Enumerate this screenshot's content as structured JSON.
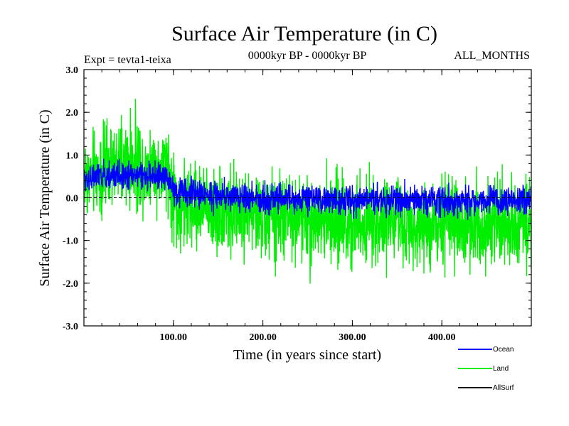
{
  "chart_data": {
    "type": "line",
    "title": "Surface Air Temperature (in C)",
    "experiment_label": "Expt = tevta1-teixa",
    "period_label": "0000kyr BP - 0000kyr BP",
    "months_label": "ALL_MONTHS",
    "xlabel": "Time (in years since start)",
    "ylabel": "Surface Air Temperature (in C)",
    "xlim": [
      0,
      500
    ],
    "ylim": [
      -3.0,
      3.0
    ],
    "x_ticks": [
      100,
      200,
      300,
      400
    ],
    "x_tick_labels": [
      "100.00",
      "200.00",
      "300.00",
      "400.00"
    ],
    "y_ticks": [
      -3,
      -2,
      -1,
      0,
      1,
      2,
      3
    ],
    "y_tick_labels": [
      "-3.0",
      "-2.0",
      "-1.0",
      "0.0",
      "1.0",
      "2.0",
      "3.0"
    ],
    "zero_line_dashed": true,
    "x_step": 0.25,
    "series": [
      {
        "name": "Ocean",
        "color": "#0000ff",
        "noise_amplitude": 0.28,
        "trend_x": [
          0,
          50,
          95,
          100,
          150,
          200,
          300,
          400,
          500
        ],
        "trend_y": [
          0.45,
          0.55,
          0.45,
          0.15,
          0.05,
          -0.02,
          -0.05,
          -0.07,
          -0.08
        ]
      },
      {
        "name": "Land",
        "color": "#00ee00",
        "noise_amplitude": 0.85,
        "trend_x": [
          0,
          50,
          95,
          100,
          150,
          200,
          300,
          400,
          500
        ],
        "trend_y": [
          0.5,
          0.8,
          0.65,
          -0.2,
          -0.25,
          -0.45,
          -0.55,
          -0.6,
          -0.6
        ]
      },
      {
        "name": "AllSurf",
        "color": "#000000",
        "noise_amplitude": 0,
        "trend_x": [],
        "trend_y": []
      }
    ]
  }
}
